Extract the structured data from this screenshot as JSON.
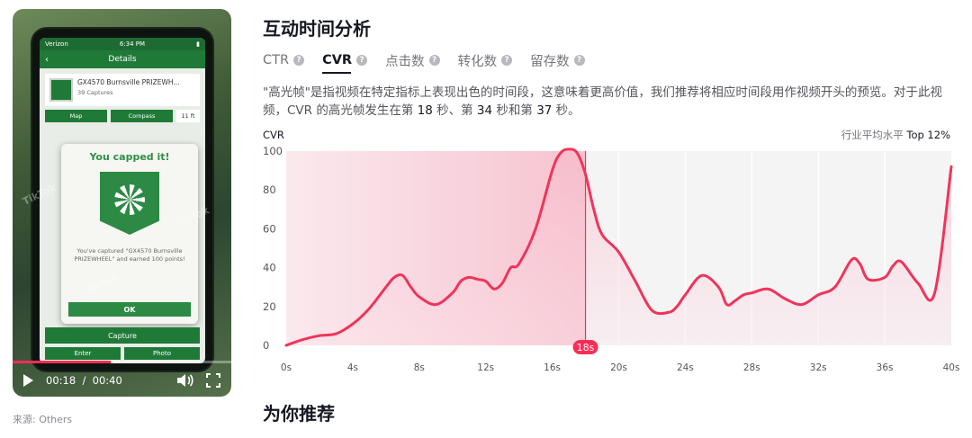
{
  "video": {
    "phone": {
      "carrier": "Verizon",
      "clock": "6:34 PM",
      "screen_title": "Details",
      "cache_name": "GX4570 Burnsville PRIZEWH...",
      "captures": "39 Captures",
      "map_btn": "Map",
      "compass_btn": "Compass",
      "distance": "11 ft",
      "modal_title": "You capped it!",
      "modal_text": "You've captured \"GX4570 Burnsville PRIZEWHEEL\" and earned 100 points!",
      "modal_ok": "OK",
      "capture_btn": "Capture",
      "enter_btn": "Enter",
      "photo_btn": "Photo"
    },
    "watermark": "TikTok",
    "progress_fraction": 0.45,
    "current_time": "00:18",
    "duration": "00:40",
    "icons": [
      "play-icon",
      "volume-icon",
      "fullscreen-icon"
    ]
  },
  "source": "来源: Others",
  "analysis": {
    "title": "互动时间分析",
    "tabs": [
      {
        "label": "CTR",
        "active": false
      },
      {
        "label": "CVR",
        "active": true
      },
      {
        "label": "点击数",
        "active": false
      },
      {
        "label": "转化数",
        "active": false
      },
      {
        "label": "留存数",
        "active": false
      }
    ],
    "description": {
      "part1": "\"高光帧\"是指视频在特定指标上表现出色的时间段，这意味着更高价值，我们推荐将相应时间段用作视频开头的预览。对于此视频，CVR 的高光帧发生在第 ",
      "t1": "18",
      "part2": " 秒、第 ",
      "t2": "34",
      "part3": " 秒和第 ",
      "t3": "37",
      "part4": " 秒。"
    },
    "recommend_title": "为你推荐"
  },
  "colors": {
    "accent": "#fe2c55",
    "line": "#f0345a"
  },
  "chart_data": {
    "type": "area",
    "ylabel": "CVR",
    "benchmark_label": "行业平均水平",
    "benchmark_value": "Top 12%",
    "ylim": [
      0,
      100
    ],
    "yticks": [
      0,
      20,
      40,
      60,
      80,
      100
    ],
    "xlim": [
      0,
      40
    ],
    "xticks": [
      "0s",
      "4s",
      "8s",
      "12s",
      "16s",
      "20s",
      "24s",
      "28s",
      "32s",
      "36s",
      "40s"
    ],
    "marker": "18s",
    "marker_x": 18,
    "highlight_range": [
      0,
      18
    ],
    "x": [
      0,
      1,
      2,
      3,
      4,
      5,
      6,
      6.5,
      7,
      7.5,
      8,
      9,
      10,
      10.5,
      11,
      11.5,
      12,
      12.5,
      13,
      13.5,
      14,
      15,
      16,
      16.5,
      17,
      17.5,
      18,
      18.5,
      19,
      20,
      21,
      22,
      23,
      23.5,
      24,
      25,
      26,
      26.5,
      27,
      27.5,
      28,
      29,
      30,
      31,
      32,
      33,
      34,
      34.5,
      35,
      36,
      36.5,
      37,
      38,
      39,
      40
    ],
    "y": [
      0,
      3,
      5,
      6,
      11,
      19,
      30,
      35,
      36,
      30,
      25,
      21,
      27,
      33,
      35,
      34,
      33,
      29,
      32,
      40,
      42,
      60,
      90,
      99,
      101,
      99,
      88,
      70,
      57,
      48,
      33,
      18,
      17,
      20,
      26,
      36,
      30,
      21,
      23,
      26,
      27,
      29,
      24,
      21,
      26,
      30,
      44,
      42,
      34,
      35,
      41,
      43,
      32,
      27,
      92
    ]
  }
}
